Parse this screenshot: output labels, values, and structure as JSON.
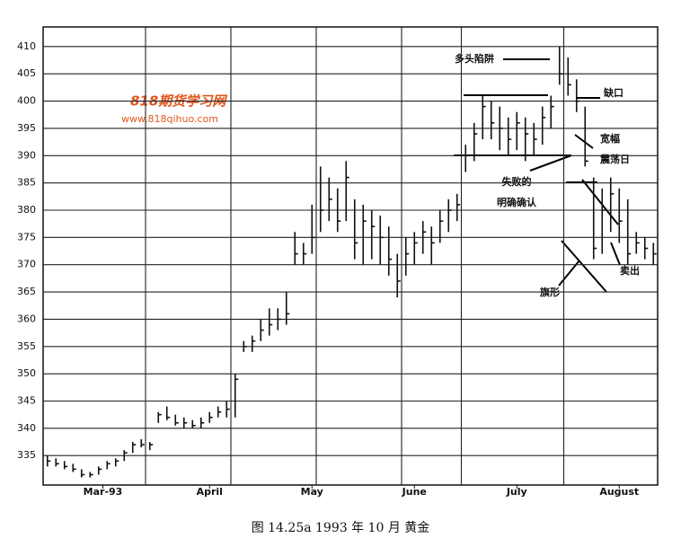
{
  "chart_data": {
    "type": "ohlc",
    "caption": "图 14.25a   1993 年 10 月   黄金",
    "watermark": "818期货学习网",
    "watermark_url": "www.818qihuo.com",
    "annotations": [
      "多头陷阱",
      "缺口",
      "宽幅",
      "震荡日",
      "失败的",
      "明确确认",
      "旗形",
      "卖出"
    ],
    "x": [
      0,
      1,
      2,
      3,
      4,
      5,
      6,
      7,
      8,
      9,
      10,
      11,
      12,
      13,
      14,
      15,
      16,
      17,
      18,
      19,
      20,
      21,
      22,
      23,
      24,
      25,
      26,
      27,
      28,
      29,
      30,
      31,
      32,
      33,
      34,
      35,
      36,
      37,
      38,
      39,
      40,
      41,
      42,
      43,
      44,
      45,
      46,
      47,
      48,
      49,
      50,
      51,
      52,
      53,
      54,
      55,
      56,
      57,
      58,
      59,
      60,
      61,
      62,
      63,
      64,
      65,
      66,
      67,
      68,
      69,
      70,
      71
    ],
    "high": [
      335,
      334.5,
      334,
      333.5,
      332.5,
      332,
      333,
      334,
      334.5,
      336,
      337.5,
      338,
      337.5,
      343,
      344,
      342.5,
      342,
      341.5,
      342,
      343,
      344,
      345,
      350,
      356,
      357,
      360,
      362,
      362,
      365,
      376,
      374,
      381,
      388,
      386,
      384,
      389,
      382,
      381,
      380,
      379,
      377,
      372,
      375,
      376,
      378,
      377,
      380,
      382,
      383,
      392,
      396,
      401,
      400,
      399,
      397,
      398,
      397,
      396,
      399,
      401,
      410,
      408,
      404,
      399,
      386,
      384,
      386,
      384,
      382,
      376,
      375,
      374
    ],
    "low": [
      333,
      333,
      332.5,
      332,
      331,
      331,
      331.5,
      332.5,
      333,
      334,
      335.5,
      336.5,
      336,
      341,
      341.5,
      340.5,
      340,
      340,
      340,
      341,
      342,
      342,
      342,
      354,
      354,
      356,
      357,
      358,
      359,
      370,
      370,
      372,
      376,
      378,
      376,
      378,
      371,
      370,
      371,
      370,
      368,
      364,
      368,
      370,
      372,
      370,
      374,
      376,
      378,
      387,
      389,
      393,
      393,
      391,
      390,
      391,
      389,
      390,
      392,
      395,
      403,
      401,
      398,
      388,
      371,
      372,
      376,
      374,
      370,
      372,
      371,
      370
    ],
    "close": [
      334,
      333.5,
      333,
      332.5,
      331.5,
      331.5,
      332.5,
      333.5,
      334,
      335.5,
      337,
      337,
      337,
      342.5,
      342,
      341,
      341,
      340.5,
      341,
      342,
      343,
      343.5,
      349,
      355,
      356,
      358,
      359,
      360,
      361,
      372,
      372,
      375,
      380,
      382,
      378,
      386,
      374,
      378,
      377,
      375,
      371,
      367,
      372,
      374,
      376,
      374,
      378,
      380,
      381,
      390,
      394,
      399,
      396,
      395,
      393,
      396,
      394,
      393,
      397,
      399,
      405,
      403,
      400,
      389,
      373,
      380,
      383,
      378,
      372,
      374,
      373,
      372
    ],
    "xlim": [
      -0.5,
      71.5
    ],
    "xticks": [
      {
        "value": 6.5,
        "label": "Mar-93"
      },
      {
        "value": 19,
        "label": "April"
      },
      {
        "value": 31,
        "label": "May"
      },
      {
        "value": 43,
        "label": "June"
      },
      {
        "value": 55,
        "label": "July"
      },
      {
        "value": 67,
        "label": "August"
      }
    ],
    "vlines": [
      11.5,
      21.5,
      31.5,
      41.5,
      48.5,
      60.5
    ],
    "ylim": [
      329.6,
      413.6
    ],
    "yticks": [
      335,
      340,
      345,
      350,
      355,
      360,
      365,
      370,
      375,
      380,
      385,
      390,
      395,
      400,
      405,
      410
    ],
    "grid": true,
    "color": "#111111"
  }
}
